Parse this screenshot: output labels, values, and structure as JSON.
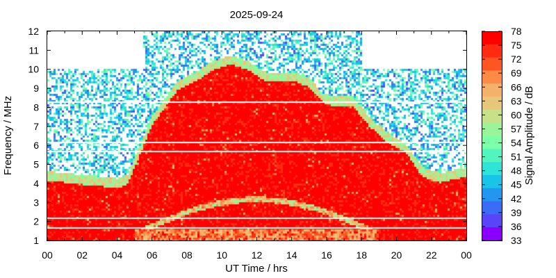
{
  "chart_data": {
    "type": "heatmap",
    "title": "2025-09-24",
    "xlabel": "UT Time / hrs",
    "ylabel": "Frequency / MHz",
    "colorbar_label": "Signal Amplitude / dB",
    "xlim": [
      0,
      24
    ],
    "ylim": [
      1,
      12
    ],
    "x_tick_labels": [
      "00",
      "02",
      "04",
      "06",
      "08",
      "10",
      "12",
      "14",
      "16",
      "18",
      "20",
      "22",
      "00"
    ],
    "y_tick_labels": [
      "1",
      "2",
      "3",
      "4",
      "5",
      "6",
      "7",
      "8",
      "9",
      "10",
      "11",
      "12"
    ],
    "colorbar": {
      "range": [
        33,
        78
      ],
      "tick_labels": [
        "78",
        "75",
        "72",
        "69",
        "66",
        "63",
        "60",
        "57",
        "54",
        "51",
        "48",
        "45",
        "42",
        "39",
        "36",
        "33"
      ],
      "colors": [
        "#ff0000",
        "#ff2a10",
        "#ff5522",
        "#ff8a45",
        "#f5b06a",
        "#e6c77a",
        "#c8e088",
        "#9af59a",
        "#7dffa8",
        "#52f5c0",
        "#2ee3d8",
        "#19c4ea",
        "#2596f0",
        "#3a6cf5",
        "#5a44f8",
        "#8a00ff"
      ]
    },
    "grid": false,
    "features": {
      "strong_echo_upper_edge_mhz": [
        [
          0,
          4.4
        ],
        [
          2,
          4.2
        ],
        [
          4,
          4.0
        ],
        [
          4.6,
          4.2
        ],
        [
          5.2,
          5.5
        ],
        [
          6.0,
          7.3
        ],
        [
          6.8,
          8.3
        ],
        [
          7.5,
          9.2
        ],
        [
          8.5,
          9.6
        ],
        [
          9.5,
          10.2
        ],
        [
          10.5,
          10.5
        ],
        [
          11.5,
          10.2
        ],
        [
          12.5,
          9.6
        ],
        [
          13.3,
          9.6
        ],
        [
          14.2,
          9.6
        ],
        [
          15.0,
          9.3
        ],
        [
          15.8,
          8.5
        ],
        [
          16.5,
          8.3
        ],
        [
          17.5,
          8.3
        ],
        [
          18.5,
          7.2
        ],
        [
          19.5,
          6.4
        ],
        [
          20.5,
          5.9
        ],
        [
          21.5,
          4.6
        ],
        [
          22.5,
          4.3
        ],
        [
          23.5,
          4.5
        ],
        [
          24,
          4.6
        ]
      ],
      "extended_frequency_window": {
        "x": [
          5.5,
          18.0
        ],
        "y_max": 12
      },
      "white_gap_lines_mhz": [
        8.3,
        6.2,
        5.7,
        2.2,
        1.7
      ]
    }
  }
}
